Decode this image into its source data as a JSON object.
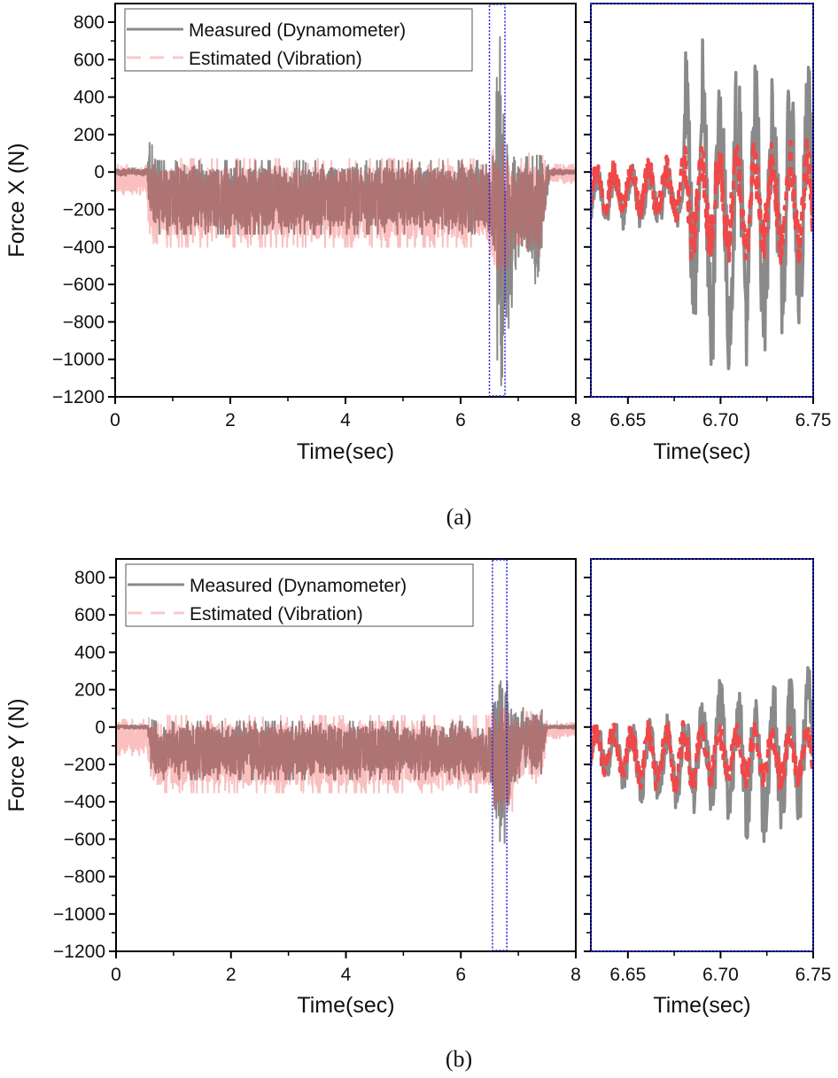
{
  "chart_data": [
    {
      "type": "line",
      "caption": "(a)",
      "ylabel": "Force X (N)",
      "ylim": [
        -1200,
        850
      ],
      "yticks": [
        800,
        600,
        400,
        200,
        0,
        -200,
        -400,
        -600,
        -800,
        -1000,
        -1200
      ],
      "ytick_labels": [
        "800",
        "600",
        "400",
        "200",
        "0",
        "−200",
        "−400",
        "−600",
        "−800",
        "−1000",
        "−1200"
      ],
      "legend": {
        "position": "top-left",
        "entries": [
          "Measured (Dynamometer)",
          "Estimated (Vibration)"
        ]
      },
      "colors": {
        "measured": "#8a8a8a",
        "estimated": "#f04848",
        "highlight": "#2020e0"
      },
      "overview": {
        "xlabel": "Time(sec)",
        "xlim": [
          0,
          8
        ],
        "xticks": [
          0,
          2,
          4,
          6,
          8
        ],
        "xtick_labels": [
          "0",
          "2",
          "4",
          "6",
          "8"
        ],
        "highlight_region": [
          6.5,
          6.77
        ],
        "series": [
          {
            "name": "Measured (Dynamometer)",
            "style": "solid",
            "envelope_t_min_max": [
              [
                0,
                -20,
                20
              ],
              [
                0.55,
                -20,
                20
              ],
              [
                0.6,
                -250,
                200
              ],
              [
                0.7,
                -330,
                60
              ],
              [
                6.5,
                -330,
                60
              ],
              [
                6.6,
                -500,
                100
              ],
              [
                6.65,
                -1180,
                860
              ],
              [
                6.7,
                -1150,
                650
              ],
              [
                6.8,
                -900,
                300
              ],
              [
                6.9,
                -700,
                200
              ],
              [
                7.0,
                -450,
                80
              ],
              [
                7.2,
                -500,
                80
              ],
              [
                7.35,
                -700,
                90
              ],
              [
                7.45,
                -300,
                80
              ],
              [
                7.55,
                -20,
                20
              ],
              [
                8,
                -10,
                10
              ]
            ]
          },
          {
            "name": "Estimated (Vibration)",
            "style": "dashed",
            "envelope_t_min_max": [
              [
                0,
                -120,
                40
              ],
              [
                0.55,
                -120,
                40
              ],
              [
                0.6,
                -400,
                70
              ],
              [
                6.5,
                -400,
                70
              ],
              [
                6.6,
                -600,
                150
              ],
              [
                6.8,
                -600,
                150
              ],
              [
                6.85,
                -450,
                100
              ],
              [
                7.4,
                -450,
                100
              ],
              [
                7.5,
                -60,
                40
              ],
              [
                8,
                -60,
                40
              ]
            ]
          }
        ]
      },
      "zoom": {
        "xlabel": "Time(sec)",
        "xlim": [
          6.63,
          6.75
        ],
        "xticks": [
          6.65,
          6.7,
          6.75
        ],
        "xtick_labels": [
          "6.65",
          "6.70",
          "6.75"
        ],
        "series": [
          {
            "name": "Measured (Dynamometer)",
            "style": "solid",
            "envelope_t_min_max": [
              [
                6.63,
                -300,
                50
              ],
              [
                6.68,
                -330,
                60
              ],
              [
                6.681,
                -850,
                860
              ],
              [
                6.7,
                -1170,
                740
              ],
              [
                6.72,
                -1000,
                600
              ],
              [
                6.75,
                -900,
                600
              ]
            ]
          },
          {
            "name": "Estimated (Vibration)",
            "style": "dashed",
            "envelope_t_min_max": [
              [
                6.63,
                -250,
                60
              ],
              [
                6.68,
                -300,
                120
              ],
              [
                6.681,
                -500,
                180
              ],
              [
                6.75,
                -500,
                200
              ]
            ]
          }
        ]
      }
    },
    {
      "type": "line",
      "caption": "(b)",
      "ylabel": "Force Y (N)",
      "ylim": [
        -1200,
        850
      ],
      "yticks": [
        800,
        600,
        400,
        200,
        0,
        -200,
        -400,
        -600,
        -800,
        -1000,
        -1200
      ],
      "ytick_labels": [
        "800",
        "600",
        "400",
        "200",
        "0",
        "−200",
        "−400",
        "−600",
        "−800",
        "−1000",
        "−1200"
      ],
      "legend": {
        "position": "top-left",
        "entries": [
          "Measured (Dynamometer)",
          "Estimated (Vibration)"
        ]
      },
      "colors": {
        "measured": "#8a8a8a",
        "estimated": "#f04848",
        "highlight": "#2020e0"
      },
      "overview": {
        "xlabel": "Time(sec)",
        "xlim": [
          0,
          8
        ],
        "xticks": [
          0,
          2,
          4,
          6,
          8
        ],
        "xtick_labels": [
          "0",
          "2",
          "4",
          "6",
          "8"
        ],
        "highlight_region": [
          6.55,
          6.8
        ],
        "series": [
          {
            "name": "Measured (Dynamometer)",
            "style": "solid",
            "envelope_t_min_max": [
              [
                0,
                -10,
                10
              ],
              [
                0.55,
                -10,
                10
              ],
              [
                0.6,
                -250,
                40
              ],
              [
                0.7,
                -280,
                30
              ],
              [
                6.5,
                -280,
                30
              ],
              [
                6.6,
                -450,
                200
              ],
              [
                6.7,
                -650,
                370
              ],
              [
                6.8,
                -600,
                250
              ],
              [
                6.9,
                -300,
                120
              ],
              [
                7.1,
                -250,
                100
              ],
              [
                7.4,
                -250,
                100
              ],
              [
                7.5,
                -10,
                10
              ],
              [
                8,
                -10,
                10
              ]
            ]
          },
          {
            "name": "Estimated (Vibration)",
            "style": "dashed",
            "envelope_t_min_max": [
              [
                0,
                -150,
                40
              ],
              [
                0.55,
                -150,
                40
              ],
              [
                0.6,
                -350,
                60
              ],
              [
                6.5,
                -350,
                60
              ],
              [
                6.6,
                -450,
                100
              ],
              [
                6.9,
                -450,
                100
              ],
              [
                6.95,
                -300,
                80
              ],
              [
                7.4,
                -300,
                80
              ],
              [
                7.5,
                -60,
                30
              ],
              [
                8,
                -60,
                30
              ]
            ]
          }
        ]
      },
      "zoom": {
        "xlabel": "Time(sec)",
        "xlim": [
          6.63,
          6.75
        ],
        "xticks": [
          6.65,
          6.7,
          6.75
        ],
        "xtick_labels": [
          "6.65",
          "6.70",
          "6.75"
        ],
        "series": [
          {
            "name": "Measured (Dynamometer)",
            "style": "solid",
            "envelope_t_min_max": [
              [
                6.63,
                -250,
                50
              ],
              [
                6.66,
                -420,
                50
              ],
              [
                6.68,
                -450,
                100
              ],
              [
                6.7,
                -530,
                320
              ],
              [
                6.72,
                -650,
                250
              ],
              [
                6.75,
                -500,
                330
              ]
            ]
          },
          {
            "name": "Estimated (Vibration)",
            "style": "dashed",
            "envelope_t_min_max": [
              [
                6.63,
                -250,
                40
              ],
              [
                6.68,
                -400,
                40
              ],
              [
                6.7,
                -300,
                30
              ],
              [
                6.75,
                -380,
                40
              ]
            ]
          }
        ]
      }
    }
  ]
}
